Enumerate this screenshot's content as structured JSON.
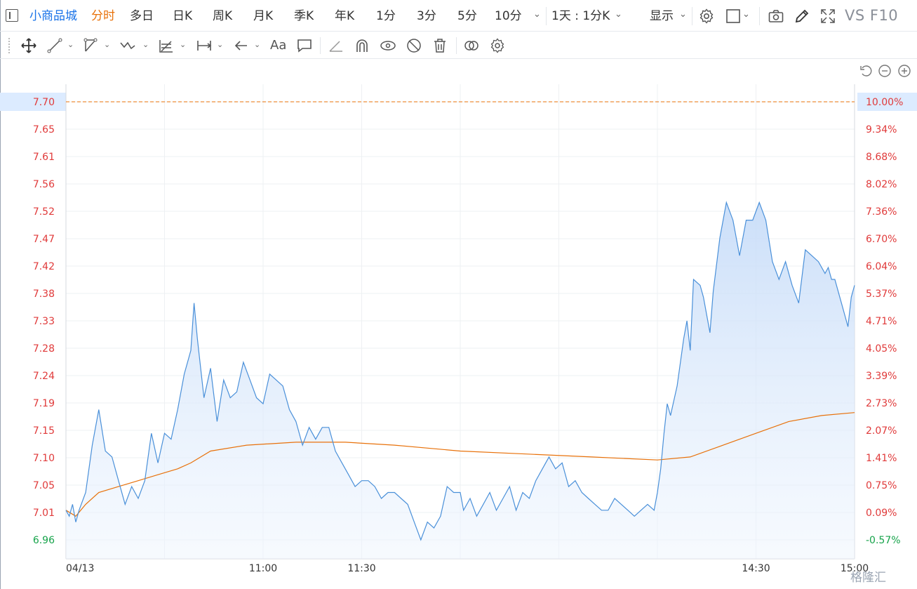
{
  "toolbar": {
    "symbol": "小商品城",
    "timeframes": [
      {
        "label": "分时",
        "active": true
      },
      {
        "label": "多日",
        "active": false
      },
      {
        "label": "日K",
        "active": false
      },
      {
        "label": "周K",
        "active": false
      },
      {
        "label": "月K",
        "active": false
      },
      {
        "label": "季K",
        "active": false
      },
      {
        "label": "年K",
        "active": false
      },
      {
        "label": "1分",
        "active": false
      },
      {
        "label": "3分",
        "active": false
      },
      {
        "label": "5分",
        "active": false
      },
      {
        "label": "10分",
        "active": false
      }
    ],
    "range_select": "1天 : 1分K",
    "display_label": "显示",
    "vs_f10": "VS F10",
    "icons": [
      "panel-toggle-icon",
      "settings-gear-icon",
      "square-shape-icon",
      "camera-icon",
      "pencil-icon",
      "fullscreen-icon"
    ]
  },
  "drawing_toolbar": {
    "text_tool": "Aa",
    "icons": [
      "move-cross-icon",
      "line-tool-icon",
      "polyline-tool-icon",
      "wave-tool-icon",
      "fib-tool-icon",
      "measure-tool-icon",
      "arrow-left-icon",
      "text-tool-icon",
      "comment-icon",
      "ruler-icon",
      "magnet-icon",
      "eye-lock-icon",
      "eye-off-icon",
      "trash-icon",
      "overlay-icon",
      "gear-icon"
    ]
  },
  "zoom_controls": [
    "reset-icon",
    "zoom-out-icon",
    "zoom-in-icon"
  ],
  "watermark": "格隆汇",
  "colors": {
    "price_line": "#4a90d9",
    "avg_line": "#e8710a",
    "area_fill_top": "#c7dcf8",
    "up": "#e03a3a",
    "down": "#16a34a",
    "limit_line": "#e8710a",
    "highlight": "#dcebff"
  },
  "chart_data": {
    "type": "line",
    "x_tick_labels": [
      "04/13",
      "11:00",
      "11:30",
      "14:30",
      "15:00"
    ],
    "y_left_ticks": [
      "7.70",
      "7.65",
      "7.61",
      "7.56",
      "7.52",
      "7.47",
      "7.42",
      "7.38",
      "7.33",
      "7.28",
      "7.24",
      "7.19",
      "7.15",
      "7.10",
      "7.05",
      "7.01",
      "6.96"
    ],
    "y_right_ticks": [
      "10.00%",
      "9.34%",
      "8.68%",
      "8.02%",
      "7.36%",
      "6.70%",
      "6.04%",
      "5.37%",
      "4.71%",
      "4.05%",
      "3.39%",
      "2.73%",
      "2.07%",
      "1.41%",
      "0.75%",
      "0.09%",
      "-0.57%"
    ],
    "prev_close": 7.0,
    "limit_up_price": 7.7,
    "highlighted_left_label": "7.70",
    "highlighted_right_label": "10.00%",
    "ylim": [
      6.96,
      7.7
    ],
    "n_minutes": 241,
    "price": [
      {
        "m": 0,
        "v": 7.01
      },
      {
        "m": 1,
        "v": 7.0
      },
      {
        "m": 2,
        "v": 7.02
      },
      {
        "m": 3,
        "v": 6.99
      },
      {
        "m": 4,
        "v": 7.01
      },
      {
        "m": 6,
        "v": 7.04
      },
      {
        "m": 8,
        "v": 7.12
      },
      {
        "m": 10,
        "v": 7.18
      },
      {
        "m": 12,
        "v": 7.11
      },
      {
        "m": 14,
        "v": 7.1
      },
      {
        "m": 16,
        "v": 7.06
      },
      {
        "m": 18,
        "v": 7.02
      },
      {
        "m": 20,
        "v": 7.05
      },
      {
        "m": 22,
        "v": 7.03
      },
      {
        "m": 24,
        "v": 7.06
      },
      {
        "m": 26,
        "v": 7.14
      },
      {
        "m": 28,
        "v": 7.09
      },
      {
        "m": 30,
        "v": 7.14
      },
      {
        "m": 32,
        "v": 7.13
      },
      {
        "m": 34,
        "v": 7.18
      },
      {
        "m": 36,
        "v": 7.24
      },
      {
        "m": 38,
        "v": 7.28
      },
      {
        "m": 39,
        "v": 7.36
      },
      {
        "m": 40,
        "v": 7.3
      },
      {
        "m": 42,
        "v": 7.2
      },
      {
        "m": 44,
        "v": 7.25
      },
      {
        "m": 46,
        "v": 7.16
      },
      {
        "m": 48,
        "v": 7.23
      },
      {
        "m": 50,
        "v": 7.2
      },
      {
        "m": 52,
        "v": 7.21
      },
      {
        "m": 54,
        "v": 7.26
      },
      {
        "m": 56,
        "v": 7.23
      },
      {
        "m": 58,
        "v": 7.2
      },
      {
        "m": 60,
        "v": 7.19
      },
      {
        "m": 62,
        "v": 7.24
      },
      {
        "m": 64,
        "v": 7.23
      },
      {
        "m": 66,
        "v": 7.22
      },
      {
        "m": 68,
        "v": 7.18
      },
      {
        "m": 70,
        "v": 7.16
      },
      {
        "m": 72,
        "v": 7.12
      },
      {
        "m": 74,
        "v": 7.15
      },
      {
        "m": 76,
        "v": 7.13
      },
      {
        "m": 78,
        "v": 7.15
      },
      {
        "m": 80,
        "v": 7.15
      },
      {
        "m": 82,
        "v": 7.11
      },
      {
        "m": 84,
        "v": 7.09
      },
      {
        "m": 86,
        "v": 7.07
      },
      {
        "m": 88,
        "v": 7.05
      },
      {
        "m": 90,
        "v": 7.06
      },
      {
        "m": 92,
        "v": 7.06
      },
      {
        "m": 94,
        "v": 7.05
      },
      {
        "m": 96,
        "v": 7.03
      },
      {
        "m": 98,
        "v": 7.04
      },
      {
        "m": 100,
        "v": 7.04
      },
      {
        "m": 102,
        "v": 7.03
      },
      {
        "m": 104,
        "v": 7.02
      },
      {
        "m": 106,
        "v": 6.99
      },
      {
        "m": 108,
        "v": 6.96
      },
      {
        "m": 110,
        "v": 6.99
      },
      {
        "m": 112,
        "v": 6.98
      },
      {
        "m": 114,
        "v": 7.0
      },
      {
        "m": 116,
        "v": 7.05
      },
      {
        "m": 118,
        "v": 7.04
      },
      {
        "m": 120,
        "v": 7.04
      },
      {
        "m": 121,
        "v": 7.01
      },
      {
        "m": 123,
        "v": 7.03
      },
      {
        "m": 125,
        "v": 7.0
      },
      {
        "m": 127,
        "v": 7.02
      },
      {
        "m": 129,
        "v": 7.04
      },
      {
        "m": 131,
        "v": 7.01
      },
      {
        "m": 133,
        "v": 7.03
      },
      {
        "m": 135,
        "v": 7.05
      },
      {
        "m": 137,
        "v": 7.01
      },
      {
        "m": 139,
        "v": 7.04
      },
      {
        "m": 141,
        "v": 7.03
      },
      {
        "m": 143,
        "v": 7.06
      },
      {
        "m": 145,
        "v": 7.08
      },
      {
        "m": 147,
        "v": 7.1
      },
      {
        "m": 149,
        "v": 7.08
      },
      {
        "m": 151,
        "v": 7.09
      },
      {
        "m": 153,
        "v": 7.05
      },
      {
        "m": 155,
        "v": 7.06
      },
      {
        "m": 157,
        "v": 7.04
      },
      {
        "m": 159,
        "v": 7.03
      },
      {
        "m": 161,
        "v": 7.02
      },
      {
        "m": 163,
        "v": 7.01
      },
      {
        "m": 165,
        "v": 7.01
      },
      {
        "m": 167,
        "v": 7.03
      },
      {
        "m": 169,
        "v": 7.02
      },
      {
        "m": 171,
        "v": 7.01
      },
      {
        "m": 173,
        "v": 7.0
      },
      {
        "m": 175,
        "v": 7.01
      },
      {
        "m": 177,
        "v": 7.02
      },
      {
        "m": 179,
        "v": 7.01
      },
      {
        "m": 180,
        "v": 7.04
      },
      {
        "m": 181,
        "v": 7.08
      },
      {
        "m": 182,
        "v": 7.14
      },
      {
        "m": 183,
        "v": 7.19
      },
      {
        "m": 184,
        "v": 7.17
      },
      {
        "m": 186,
        "v": 7.22
      },
      {
        "m": 188,
        "v": 7.3
      },
      {
        "m": 189,
        "v": 7.33
      },
      {
        "m": 190,
        "v": 7.28
      },
      {
        "m": 191,
        "v": 7.4
      },
      {
        "m": 193,
        "v": 7.39
      },
      {
        "m": 194,
        "v": 7.37
      },
      {
        "m": 196,
        "v": 7.31
      },
      {
        "m": 197,
        "v": 7.38
      },
      {
        "m": 199,
        "v": 7.47
      },
      {
        "m": 201,
        "v": 7.53
      },
      {
        "m": 203,
        "v": 7.5
      },
      {
        "m": 205,
        "v": 7.44
      },
      {
        "m": 207,
        "v": 7.5
      },
      {
        "m": 209,
        "v": 7.5
      },
      {
        "m": 211,
        "v": 7.53
      },
      {
        "m": 213,
        "v": 7.5
      },
      {
        "m": 215,
        "v": 7.43
      },
      {
        "m": 217,
        "v": 7.4
      },
      {
        "m": 219,
        "v": 7.43
      },
      {
        "m": 221,
        "v": 7.39
      },
      {
        "m": 223,
        "v": 7.36
      },
      {
        "m": 225,
        "v": 7.45
      },
      {
        "m": 227,
        "v": 7.44
      },
      {
        "m": 229,
        "v": 7.43
      },
      {
        "m": 231,
        "v": 7.41
      },
      {
        "m": 232,
        "v": 7.42
      },
      {
        "m": 233,
        "v": 7.4
      },
      {
        "m": 234,
        "v": 7.4
      },
      {
        "m": 235,
        "v": 7.38
      },
      {
        "m": 236,
        "v": 7.36
      },
      {
        "m": 237,
        "v": 7.34
      },
      {
        "m": 238,
        "v": 7.32
      },
      {
        "m": 239,
        "v": 7.37
      },
      {
        "m": 240,
        "v": 7.39
      }
    ],
    "avg": [
      {
        "m": 0,
        "v": 7.01
      },
      {
        "m": 3,
        "v": 7.0
      },
      {
        "m": 6,
        "v": 7.02
      },
      {
        "m": 10,
        "v": 7.04
      },
      {
        "m": 16,
        "v": 7.05
      },
      {
        "m": 22,
        "v": 7.06
      },
      {
        "m": 28,
        "v": 7.07
      },
      {
        "m": 34,
        "v": 7.08
      },
      {
        "m": 38,
        "v": 7.09
      },
      {
        "m": 44,
        "v": 7.11
      },
      {
        "m": 55,
        "v": 7.12
      },
      {
        "m": 70,
        "v": 7.125
      },
      {
        "m": 85,
        "v": 7.125
      },
      {
        "m": 100,
        "v": 7.12
      },
      {
        "m": 120,
        "v": 7.11
      },
      {
        "m": 140,
        "v": 7.105
      },
      {
        "m": 160,
        "v": 7.1
      },
      {
        "m": 180,
        "v": 7.095
      },
      {
        "m": 190,
        "v": 7.1
      },
      {
        "m": 200,
        "v": 7.12
      },
      {
        "m": 210,
        "v": 7.14
      },
      {
        "m": 220,
        "v": 7.16
      },
      {
        "m": 230,
        "v": 7.17
      },
      {
        "m": 240,
        "v": 7.175
      }
    ]
  }
}
